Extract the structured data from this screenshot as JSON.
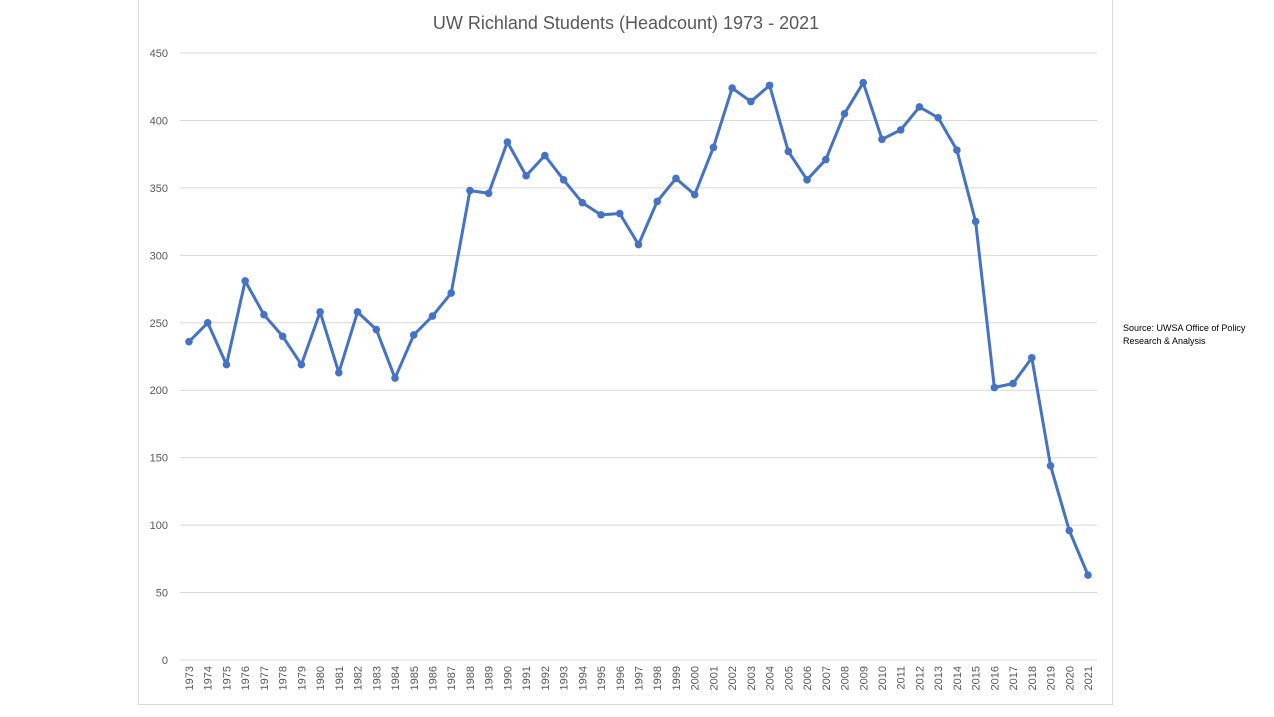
{
  "chart_data": {
    "type": "line",
    "title": "UW Richland Students (Headcount) 1973 - 2021",
    "xlabel": "",
    "ylabel": "",
    "ylim": [
      0,
      450
    ],
    "yticks": [
      0,
      50,
      100,
      150,
      200,
      250,
      300,
      350,
      400,
      450
    ],
    "grid": true,
    "color": "#4472c4",
    "x": [
      1973,
      1974,
      1975,
      1976,
      1977,
      1978,
      1979,
      1980,
      1981,
      1982,
      1983,
      1984,
      1985,
      1986,
      1987,
      1988,
      1989,
      1990,
      1991,
      1992,
      1993,
      1994,
      1995,
      1996,
      1997,
      1998,
      1999,
      2000,
      2001,
      2002,
      2003,
      2004,
      2005,
      2006,
      2007,
      2008,
      2009,
      2010,
      2011,
      2012,
      2013,
      2014,
      2015,
      2016,
      2017,
      2018,
      2019,
      2020,
      2021
    ],
    "series": [
      {
        "name": "Headcount",
        "values": [
          236,
          250,
          219,
          281,
          256,
          240,
          219,
          258,
          213,
          258,
          245,
          209,
          241,
          255,
          272,
          348,
          346,
          384,
          359,
          374,
          356,
          339,
          330,
          331,
          308,
          340,
          357,
          345,
          380,
          424,
          414,
          426,
          377,
          356,
          371,
          405,
          428,
          386,
          393,
          410,
          402,
          378,
          325,
          202,
          205,
          224,
          144,
          96,
          63
        ]
      }
    ]
  },
  "source": {
    "line1": "Source: UWSA Office of Policy",
    "line2": "Research & Analysis"
  }
}
